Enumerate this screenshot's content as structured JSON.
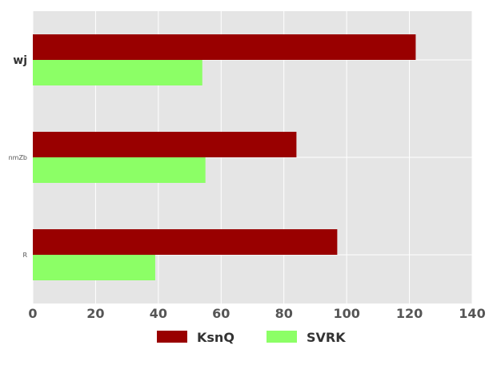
{
  "chart_data": {
    "type": "bar",
    "orientation": "horizontal",
    "categories": [
      "wj",
      "nmZb",
      "R"
    ],
    "series": [
      {
        "name": "KsnQ",
        "values": [
          122,
          84,
          97
        ]
      },
      {
        "name": "SVRK",
        "values": [
          54,
          55,
          39
        ]
      }
    ],
    "xlim": [
      0,
      140
    ],
    "xticks": [
      "0",
      "20",
      "40",
      "60",
      "80",
      "100",
      "120",
      "140"
    ],
    "grid": true,
    "legend_position": "bottom-center",
    "colors": {
      "KsnQ": "#990000",
      "SVRK": "#8cff66",
      "plot_background": "#e5e5e5",
      "grid": "#ffffff"
    }
  }
}
